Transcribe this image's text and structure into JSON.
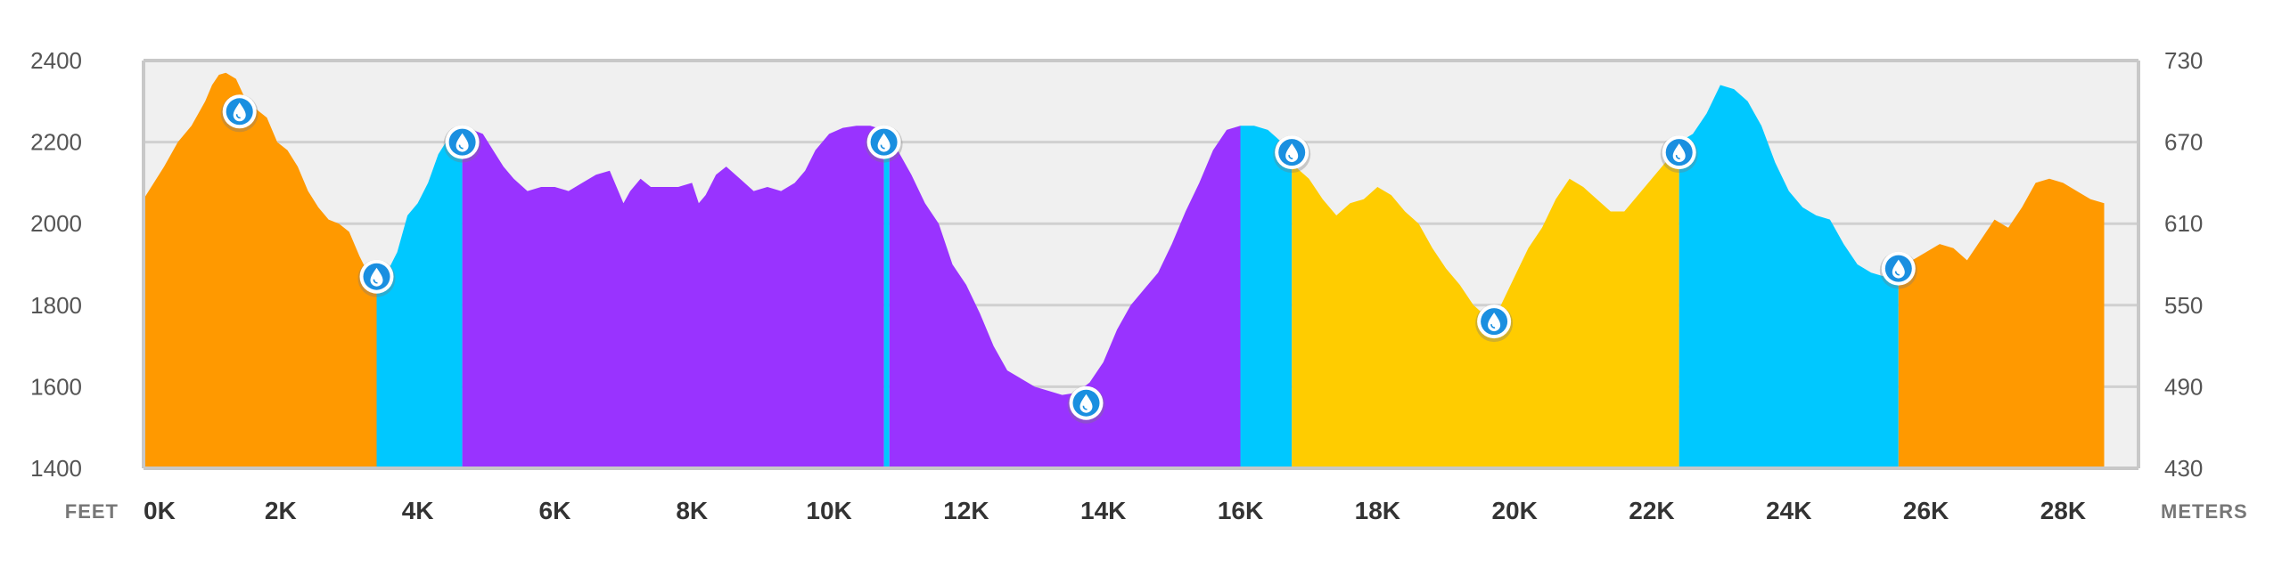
{
  "chart_data": {
    "type": "area",
    "x_unit": "feet",
    "y_unit": "feet",
    "x_label": "FEET",
    "y2_label": "METERS",
    "xlim": [
      0,
      29100
    ],
    "ylim": [
      1400,
      2400
    ],
    "x_ticks": [
      {
        "value": 0,
        "label": "0K"
      },
      {
        "value": 2000,
        "label": "2K"
      },
      {
        "value": 4000,
        "label": "4K"
      },
      {
        "value": 6000,
        "label": "6K"
      },
      {
        "value": 8000,
        "label": "8K"
      },
      {
        "value": 10000,
        "label": "10K"
      },
      {
        "value": 12000,
        "label": "12K"
      },
      {
        "value": 14000,
        "label": "14K"
      },
      {
        "value": 16000,
        "label": "16K"
      },
      {
        "value": 18000,
        "label": "18K"
      },
      {
        "value": 20000,
        "label": "20K"
      },
      {
        "value": 22000,
        "label": "22K"
      },
      {
        "value": 24000,
        "label": "24K"
      },
      {
        "value": 26000,
        "label": "26K"
      },
      {
        "value": 28000,
        "label": "28K"
      }
    ],
    "y_ticks": [
      {
        "value": 1400,
        "label": "1400"
      },
      {
        "value": 1600,
        "label": "1600"
      },
      {
        "value": 1800,
        "label": "1800"
      },
      {
        "value": 2000,
        "label": "2000"
      },
      {
        "value": 2200,
        "label": "2200"
      },
      {
        "value": 2400,
        "label": "2400"
      }
    ],
    "y2_ticks": [
      {
        "value": 1400,
        "label": "430"
      },
      {
        "value": 1600,
        "label": "490"
      },
      {
        "value": 1800,
        "label": "550"
      },
      {
        "value": 2000,
        "label": "610"
      },
      {
        "value": 2200,
        "label": "670"
      },
      {
        "value": 2400,
        "label": "730"
      }
    ],
    "grid": true,
    "colors": {
      "plot_background": "#f0f0f0",
      "gridline": "#d0d0d0",
      "frame": "#c8c8c8",
      "marker_fill": "#1a8fe0",
      "marker_ring": "#ffffff"
    },
    "profile": [
      [
        0,
        2060
      ],
      [
        300,
        2140
      ],
      [
        500,
        2200
      ],
      [
        700,
        2240
      ],
      [
        900,
        2300
      ],
      [
        1000,
        2340
      ],
      [
        1100,
        2365
      ],
      [
        1200,
        2370
      ],
      [
        1350,
        2355
      ],
      [
        1500,
        2300
      ],
      [
        1650,
        2280
      ],
      [
        1800,
        2260
      ],
      [
        1950,
        2200
      ],
      [
        2100,
        2180
      ],
      [
        2250,
        2140
      ],
      [
        2400,
        2080
      ],
      [
        2550,
        2040
      ],
      [
        2700,
        2010
      ],
      [
        2850,
        2000
      ],
      [
        3000,
        1980
      ],
      [
        3150,
        1920
      ],
      [
        3300,
        1870
      ],
      [
        3400,
        1850
      ],
      [
        3550,
        1880
      ],
      [
        3700,
        1930
      ],
      [
        3850,
        2020
      ],
      [
        4000,
        2050
      ],
      [
        4150,
        2100
      ],
      [
        4300,
        2170
      ],
      [
        4450,
        2210
      ],
      [
        4650,
        2220
      ],
      [
        4800,
        2230
      ],
      [
        4950,
        2220
      ],
      [
        5100,
        2180
      ],
      [
        5250,
        2140
      ],
      [
        5400,
        2110
      ],
      [
        5600,
        2080
      ],
      [
        5800,
        2090
      ],
      [
        6000,
        2090
      ],
      [
        6200,
        2080
      ],
      [
        6400,
        2100
      ],
      [
        6600,
        2120
      ],
      [
        6800,
        2130
      ],
      [
        6900,
        2090
      ],
      [
        7000,
        2050
      ],
      [
        7100,
        2080
      ],
      [
        7250,
        2110
      ],
      [
        7400,
        2090
      ],
      [
        7600,
        2090
      ],
      [
        7800,
        2090
      ],
      [
        8000,
        2100
      ],
      [
        8100,
        2050
      ],
      [
        8200,
        2070
      ],
      [
        8350,
        2120
      ],
      [
        8500,
        2140
      ],
      [
        8700,
        2110
      ],
      [
        8900,
        2080
      ],
      [
        9100,
        2090
      ],
      [
        9300,
        2080
      ],
      [
        9500,
        2100
      ],
      [
        9650,
        2130
      ],
      [
        9800,
        2180
      ],
      [
        10000,
        2220
      ],
      [
        10200,
        2235
      ],
      [
        10400,
        2240
      ],
      [
        10600,
        2240
      ],
      [
        10800,
        2230
      ],
      [
        11000,
        2180
      ],
      [
        11200,
        2120
      ],
      [
        11400,
        2050
      ],
      [
        11600,
        2000
      ],
      [
        11800,
        1900
      ],
      [
        12000,
        1850
      ],
      [
        12200,
        1780
      ],
      [
        12400,
        1700
      ],
      [
        12600,
        1640
      ],
      [
        12800,
        1620
      ],
      [
        13000,
        1600
      ],
      [
        13200,
        1590
      ],
      [
        13400,
        1580
      ],
      [
        13600,
        1585
      ],
      [
        13800,
        1610
      ],
      [
        14000,
        1660
      ],
      [
        14200,
        1740
      ],
      [
        14400,
        1800
      ],
      [
        14600,
        1840
      ],
      [
        14800,
        1880
      ],
      [
        15000,
        1950
      ],
      [
        15200,
        2030
      ],
      [
        15400,
        2100
      ],
      [
        15600,
        2180
      ],
      [
        15800,
        2230
      ],
      [
        16000,
        2240
      ],
      [
        16200,
        2240
      ],
      [
        16400,
        2230
      ],
      [
        16600,
        2200
      ],
      [
        16800,
        2140
      ],
      [
        17000,
        2110
      ],
      [
        17200,
        2060
      ],
      [
        17400,
        2020
      ],
      [
        17600,
        2050
      ],
      [
        17800,
        2060
      ],
      [
        18000,
        2090
      ],
      [
        18200,
        2070
      ],
      [
        18400,
        2030
      ],
      [
        18600,
        2000
      ],
      [
        18800,
        1940
      ],
      [
        19000,
        1890
      ],
      [
        19200,
        1850
      ],
      [
        19400,
        1800
      ],
      [
        19600,
        1770
      ],
      [
        19800,
        1800
      ],
      [
        20000,
        1870
      ],
      [
        20200,
        1940
      ],
      [
        20400,
        1990
      ],
      [
        20600,
        2060
      ],
      [
        20800,
        2110
      ],
      [
        21000,
        2090
      ],
      [
        21200,
        2060
      ],
      [
        21400,
        2030
      ],
      [
        21600,
        2030
      ],
      [
        21800,
        2070
      ],
      [
        22000,
        2110
      ],
      [
        22200,
        2150
      ],
      [
        22400,
        2200
      ],
      [
        22600,
        2220
      ],
      [
        22800,
        2270
      ],
      [
        23000,
        2340
      ],
      [
        23200,
        2330
      ],
      [
        23400,
        2300
      ],
      [
        23600,
        2240
      ],
      [
        23800,
        2150
      ],
      [
        24000,
        2080
      ],
      [
        24200,
        2040
      ],
      [
        24400,
        2020
      ],
      [
        24600,
        2010
      ],
      [
        24800,
        1950
      ],
      [
        25000,
        1900
      ],
      [
        25200,
        1880
      ],
      [
        25400,
        1870
      ],
      [
        25600,
        1890
      ],
      [
        25800,
        1910
      ],
      [
        26000,
        1930
      ],
      [
        26200,
        1950
      ],
      [
        26400,
        1940
      ],
      [
        26600,
        1910
      ],
      [
        26800,
        1960
      ],
      [
        27000,
        2010
      ],
      [
        27200,
        1990
      ],
      [
        27400,
        2040
      ],
      [
        27600,
        2100
      ],
      [
        27800,
        2110
      ],
      [
        28000,
        2100
      ],
      [
        28200,
        2080
      ],
      [
        28400,
        2060
      ],
      [
        28600,
        2050
      ]
    ],
    "segments": [
      {
        "from": 0,
        "to": 3400,
        "color": "#ff9900"
      },
      {
        "from": 3400,
        "to": 4650,
        "color": "#00c8ff"
      },
      {
        "from": 4650,
        "to": 10800,
        "color": "#9933ff"
      },
      {
        "from": 10800,
        "to": 10880,
        "color": "#00c8ff"
      },
      {
        "from": 10880,
        "to": 16000,
        "color": "#9933ff"
      },
      {
        "from": 16000,
        "to": 16750,
        "color": "#00c8ff"
      },
      {
        "from": 16750,
        "to": 22400,
        "color": "#ffcc00"
      },
      {
        "from": 22400,
        "to": 25600,
        "color": "#00c8ff"
      },
      {
        "from": 25600,
        "to": 28600,
        "color": "#ff9900"
      }
    ],
    "water_stops": [
      {
        "x": 1400,
        "y": 2275,
        "icon": "water-drop-icon"
      },
      {
        "x": 3400,
        "y": 1870,
        "icon": "water-drop-icon"
      },
      {
        "x": 4650,
        "y": 2200,
        "icon": "water-drop-icon"
      },
      {
        "x": 10800,
        "y": 2200,
        "icon": "water-drop-icon"
      },
      {
        "x": 13750,
        "y": 1560,
        "icon": "water-drop-icon"
      },
      {
        "x": 16750,
        "y": 2175,
        "icon": "water-drop-icon"
      },
      {
        "x": 19700,
        "y": 1760,
        "icon": "water-drop-icon"
      },
      {
        "x": 22400,
        "y": 2175,
        "icon": "water-drop-icon"
      },
      {
        "x": 25600,
        "y": 1890,
        "icon": "water-drop-icon"
      }
    ]
  }
}
